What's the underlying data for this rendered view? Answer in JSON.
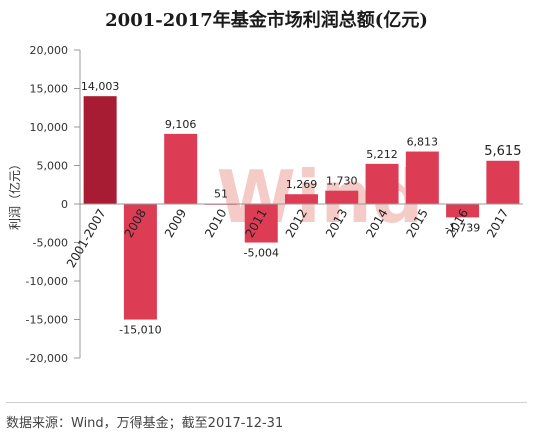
{
  "title": "2001-2017年基金市场利润总额(亿元)",
  "footer": "数据来源：Wind，万得基金；截至2017-12-31",
  "watermark": "Wind",
  "colors": {
    "bar": "#dc3d55",
    "bar_first": "#a81c33",
    "watermark": "#f2b9b6"
  },
  "chart_data": {
    "type": "bar",
    "title": "2001-2017年基金市场利润总额(亿元)",
    "ylabel": "利润（亿元）",
    "xlabel": "",
    "ylim": [
      -20000,
      20000
    ],
    "yticks": [
      -20000,
      -15000,
      -10000,
      -5000,
      0,
      5000,
      10000,
      15000,
      20000
    ],
    "ytick_labels": [
      "-20,000",
      "-15,000",
      "-10,000",
      "-5,000",
      "0",
      "5,000",
      "10,000",
      "15,000",
      "20,000"
    ],
    "categories": [
      "2001-2007",
      "2008",
      "2009",
      "2010",
      "2011",
      "2012",
      "2013",
      "2014",
      "2015",
      "2016",
      "2017"
    ],
    "values": [
      14003,
      -15010,
      9106,
      51,
      -5004,
      1269,
      1730,
      5212,
      6813,
      -1739,
      5615
    ],
    "value_labels": [
      "14,003",
      "-15,010",
      "9,106",
      "51",
      "-5,004",
      "1,269",
      "1,730",
      "5,212",
      "6,813",
      "-1,739",
      "5,615"
    ],
    "grid": false,
    "legend": "none"
  }
}
